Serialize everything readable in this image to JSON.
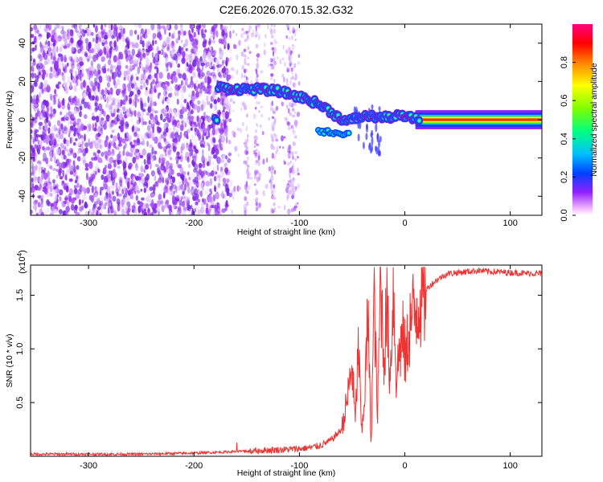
{
  "figure": {
    "title": "C2E6.2026.070.15.32.G32"
  },
  "chart_data": [
    {
      "type": "heatmap",
      "panel": "top",
      "xlabel": "Height of straight line (km)",
      "ylabel": "Frequency (Hz)",
      "xlim": [
        -355,
        130
      ],
      "ylim": [
        -50,
        50
      ],
      "x_ticks": [
        -300,
        -200,
        -100,
        0,
        100
      ],
      "y_ticks": [
        -40,
        -20,
        0,
        20,
        40
      ],
      "colorbar": {
        "label": "Normalized spectral amplitude",
        "range": [
          0,
          1
        ],
        "ticks": [
          "0.0",
          "0.2",
          "0.4",
          "0.6",
          "0.8"
        ],
        "colors": [
          "#ffffff",
          "#f0b0ff",
          "#9020ff",
          "#0040ff",
          "#00c0ff",
          "#00ff80",
          "#80ff00",
          "#ffff00",
          "#ff8000",
          "#ff0000",
          "#ff0080"
        ]
      },
      "ridge": [
        {
          "x": -178,
          "y": 17
        },
        {
          "x": -160,
          "y": 16
        },
        {
          "x": -140,
          "y": 16
        },
        {
          "x": -120,
          "y": 15
        },
        {
          "x": -100,
          "y": 12
        },
        {
          "x": -85,
          "y": 9
        },
        {
          "x": -75,
          "y": 6
        },
        {
          "x": -65,
          "y": 2
        },
        {
          "x": -55,
          "y": -1
        },
        {
          "x": -45,
          "y": 1
        },
        {
          "x": -35,
          "y": 2
        },
        {
          "x": -20,
          "y": 1
        },
        {
          "x": -5,
          "y": 2
        },
        {
          "x": 5,
          "y": 1
        },
        {
          "x": 20,
          "y": 0
        },
        {
          "x": 60,
          "y": 0
        },
        {
          "x": 100,
          "y": 0
        },
        {
          "x": 130,
          "y": 0
        }
      ]
    },
    {
      "type": "line",
      "panel": "bottom",
      "xlabel": "Height of straight line (km)",
      "ylabel": "SNR (10 * v/v)",
      "y_multiplier": "(x10",
      "y_multiplier_exp": "4",
      "y_multiplier_close": ")",
      "xlim": [
        -355,
        130
      ],
      "ylim": [
        0,
        1.78
      ],
      "x_ticks": [
        -300,
        -200,
        -100,
        0,
        100
      ],
      "y_ticks": [
        "0.5",
        "1.0",
        "1.5"
      ],
      "series": [
        {
          "color": "#ee3333",
          "x": [
            -355,
            -300,
            -250,
            -200,
            -170,
            -150,
            -120,
            -100,
            -90,
            -80,
            -70,
            -60,
            -55,
            -50,
            -47,
            -44,
            -41,
            -38,
            -35,
            -32,
            -29,
            -26,
            -23,
            -20,
            -17,
            -14,
            -11,
            -8,
            -5,
            -2,
            1,
            4,
            7,
            10,
            13,
            16,
            20,
            25,
            30,
            35,
            40,
            50,
            60,
            70,
            80,
            100,
            130
          ],
          "y": [
            0.02,
            0.02,
            0.02,
            0.03,
            0.04,
            0.05,
            0.06,
            0.07,
            0.08,
            0.1,
            0.15,
            0.25,
            0.5,
            0.85,
            0.3,
            1.05,
            0.2,
            0.6,
            1.3,
            0.1,
            1.55,
            0.3,
            1.7,
            0.9,
            1.4,
            0.7,
            1.6,
            0.7,
            1.0,
            1.1,
            0.9,
            1.2,
            1.3,
            1.35,
            1.45,
            1.5,
            1.55,
            1.6,
            1.64,
            1.67,
            1.7,
            1.71,
            1.72,
            1.73,
            1.72,
            1.71,
            1.7
          ]
        }
      ]
    }
  ]
}
